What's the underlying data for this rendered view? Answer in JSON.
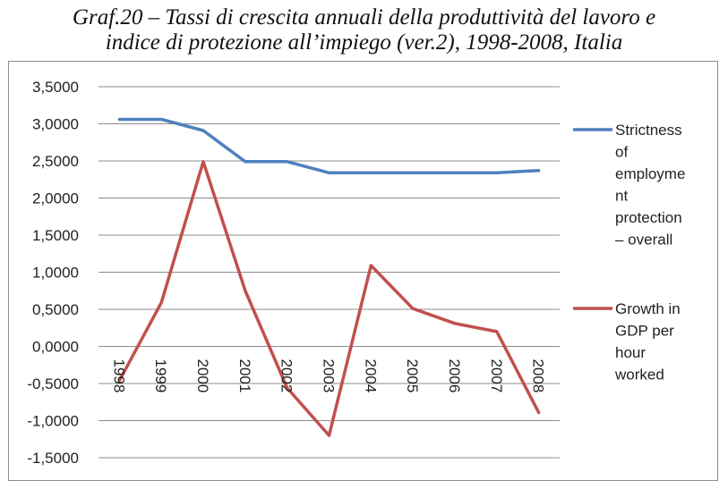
{
  "title_line1": "Graf.20 – Tassi di crescita annuali della  produttività del lavoro e",
  "title_line2": "indice di protezione all’impiego (ver.2), 1998-2008, Italia",
  "chart_data": {
    "type": "line",
    "categories": [
      "1998",
      "1999",
      "2000",
      "2001",
      "2002",
      "2003",
      "2004",
      "2005",
      "2006",
      "2007",
      "2008"
    ],
    "y_ticks": [
      "3,5000",
      "3,0000",
      "2,5000",
      "2,0000",
      "1,5000",
      "1,0000",
      "0,5000",
      "0,0000",
      "-0,5000",
      "-1,0000",
      "-1,5000"
    ],
    "ylim": [
      -1.5,
      3.5
    ],
    "grid": true,
    "legend_position": "right",
    "series": [
      {
        "name": "Strictness of employment protection – overall",
        "legend_lines": [
          "Strictness",
          "of",
          "employme",
          "nt",
          "protection",
          "– overall"
        ],
        "color": "#4f81bd",
        "values": [
          3.06,
          3.06,
          2.91,
          2.49,
          2.49,
          2.34,
          2.34,
          2.34,
          2.34,
          2.34,
          2.37
        ]
      },
      {
        "name": "Growth in GDP per hour worked",
        "legend_lines": [
          "Growth in",
          "GDP per",
          "hour",
          "worked"
        ],
        "color": "#c0504d",
        "values": [
          -0.46,
          0.59,
          2.49,
          0.75,
          -0.56,
          -1.2,
          1.09,
          0.51,
          0.31,
          0.2,
          -0.89
        ]
      }
    ]
  }
}
